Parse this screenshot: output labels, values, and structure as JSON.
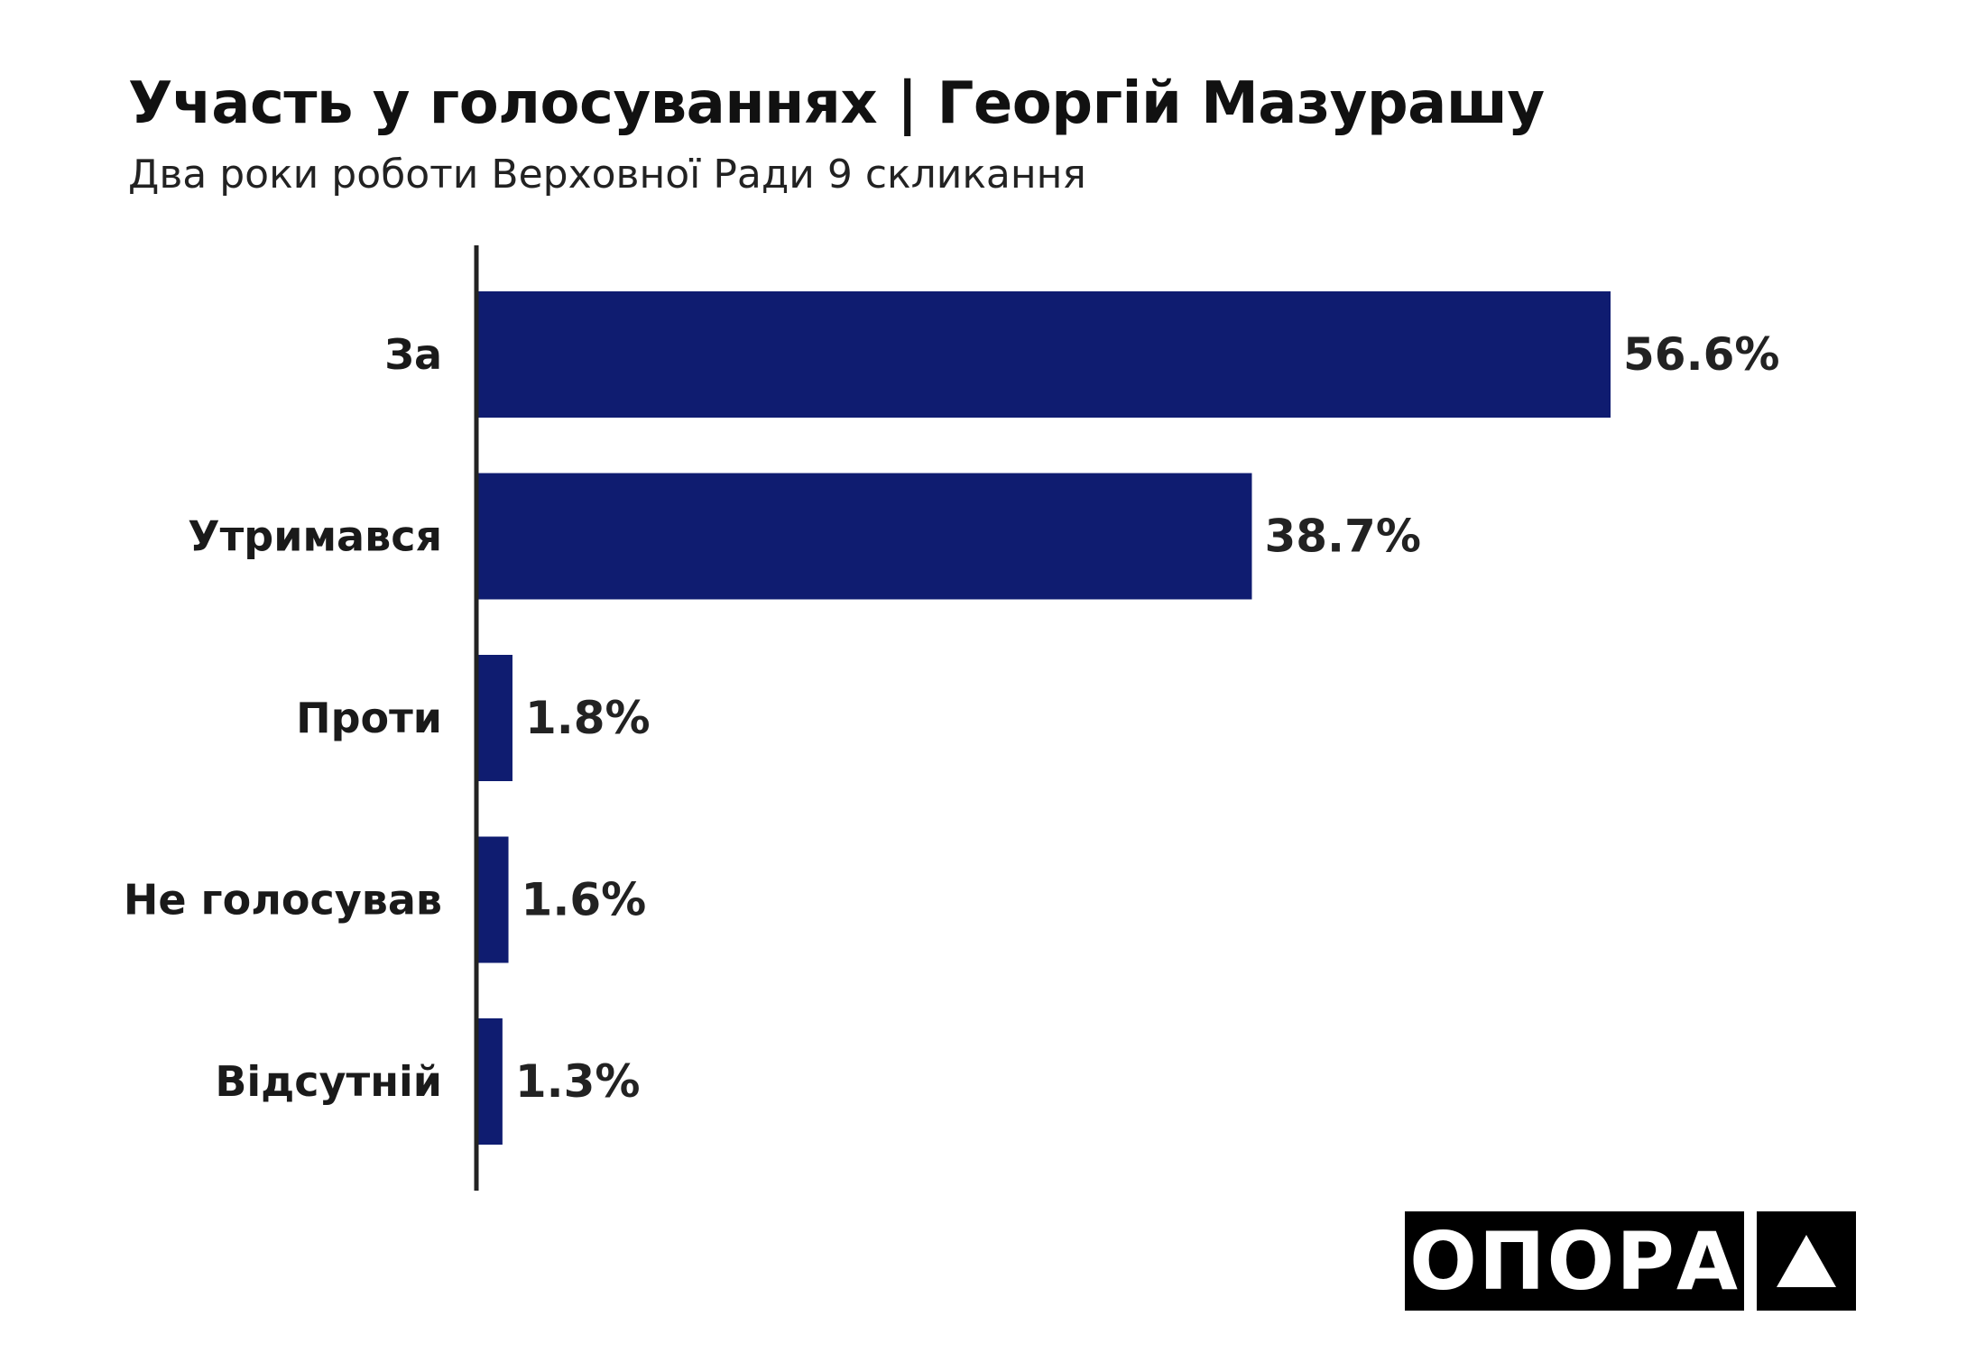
{
  "chart_data": {
    "type": "bar",
    "orientation": "horizontal",
    "title": "Участь у голосуваннях | Георгій Мазурашу",
    "subtitle": "Два роки роботи Верховної Ради 9 скликання",
    "categories": [
      "За",
      "Утримався",
      "Проти",
      "Не голосував",
      "Відсутній"
    ],
    "values": [
      56.6,
      38.7,
      1.8,
      1.6,
      1.3
    ],
    "value_labels": [
      "56.6%",
      "38.7%",
      "1.8%",
      "1.6%",
      "1.3%"
    ],
    "unit": "%",
    "bar_color": "#0f1c70",
    "grid": false
  },
  "logo": {
    "text": "ОПОРА",
    "icon": "triangle-icon"
  }
}
